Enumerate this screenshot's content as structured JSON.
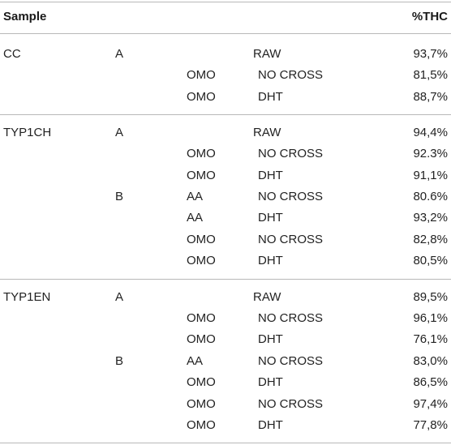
{
  "header": {
    "sample": "Sample",
    "thc": "%THC"
  },
  "groups": [
    {
      "sample": "CC",
      "rows": [
        {
          "sub": "A",
          "treat": "",
          "cond": "RAW",
          "value": "93,7%"
        },
        {
          "sub": "",
          "treat": "OMO",
          "cond": "NO CROSS",
          "value": "81,5%"
        },
        {
          "sub": "",
          "treat": "OMO",
          "cond": "DHT",
          "value": "88,7%"
        }
      ]
    },
    {
      "sample": "TYP1CH",
      "rows": [
        {
          "sub": "A",
          "treat": "",
          "cond": "RAW",
          "value": "94,4%"
        },
        {
          "sub": "",
          "treat": "OMO",
          "cond": "NO CROSS",
          "value": "92.3%"
        },
        {
          "sub": "",
          "treat": "OMO",
          "cond": "DHT",
          "value": "91,1%"
        },
        {
          "sub": "B",
          "treat": "AA",
          "cond": "NO CROSS",
          "value": "80.6%"
        },
        {
          "sub": "",
          "treat": "AA",
          "cond": "DHT",
          "value": "93,2%"
        },
        {
          "sub": "",
          "treat": "OMO",
          "cond": "NO CROSS",
          "value": "82,8%"
        },
        {
          "sub": "",
          "treat": "OMO",
          "cond": "DHT",
          "value": "80,5%"
        }
      ]
    },
    {
      "sample": "TYP1EN",
      "rows": [
        {
          "sub": "A",
          "treat": "",
          "cond": "RAW",
          "value": "89,5%"
        },
        {
          "sub": "",
          "treat": "OMO",
          "cond": "NO CROSS",
          "value": "96,1%"
        },
        {
          "sub": "",
          "treat": "OMO",
          "cond": "DHT",
          "value": "76,1%"
        },
        {
          "sub": "B",
          "treat": "AA",
          "cond": "NO CROSS",
          "value": "83,0%"
        },
        {
          "sub": "",
          "treat": "OMO",
          "cond": "DHT",
          "value": "86,5%"
        },
        {
          "sub": "",
          "treat": "OMO",
          "cond": "NO CROSS",
          "value": "97,4%"
        },
        {
          "sub": "",
          "treat": "OMO",
          "cond": "DHT",
          "value": "77,8%"
        }
      ]
    }
  ]
}
